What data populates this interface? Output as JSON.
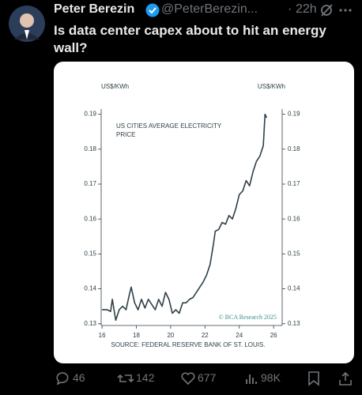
{
  "tweet": {
    "name": "Peter Berezin",
    "handle": "@PeterBerezin...",
    "time": "22h",
    "text": "Is data center capex about to hit an energy wall?",
    "replies": "46",
    "reposts": "142",
    "likes": "677",
    "views": "98K"
  },
  "chart_data": {
    "type": "line",
    "title": "US CITIES AVERAGE ELECTRICITY PRICE",
    "y_label": "US$/KWh",
    "source": "SOURCE: FEDERAL RESERVE BANK OF ST. LOUIS.",
    "watermark": "© BCA Research 2025",
    "color": "#2e3f47",
    "x": [
      16.0,
      16.3,
      16.5,
      16.6,
      16.8,
      17.0,
      17.2,
      17.4,
      17.6,
      17.7,
      17.9,
      18.1,
      18.3,
      18.5,
      18.7,
      18.9,
      19.1,
      19.3,
      19.5,
      19.7,
      19.9,
      20.1,
      20.3,
      20.5,
      20.7,
      20.9,
      21.1,
      21.3,
      21.5,
      21.7,
      21.9,
      22.1,
      22.3,
      22.5,
      22.6,
      22.8,
      23.0,
      23.2,
      23.4,
      23.6,
      23.8,
      24.0,
      24.2,
      24.4,
      24.6,
      24.8,
      25.0,
      25.2,
      25.4,
      25.5,
      25.6
    ],
    "values": [
      0.134,
      0.134,
      0.1335,
      0.137,
      0.131,
      0.134,
      0.135,
      0.134,
      0.1385,
      0.1405,
      0.136,
      0.134,
      0.137,
      0.1345,
      0.137,
      0.1355,
      0.134,
      0.137,
      0.135,
      0.139,
      0.137,
      0.133,
      0.134,
      0.133,
      0.136,
      0.136,
      0.137,
      0.1375,
      0.139,
      0.1405,
      0.142,
      0.144,
      0.147,
      0.153,
      0.1565,
      0.157,
      0.159,
      0.1585,
      0.161,
      0.16,
      0.163,
      0.167,
      0.168,
      0.171,
      0.1695,
      0.1735,
      0.1765,
      0.178,
      0.181,
      0.19,
      0.189
    ],
    "xlim": [
      15.95,
      26.5
    ],
    "xticks": [
      16,
      18,
      20,
      22,
      24,
      26
    ],
    "ylim": [
      0.1295,
      0.1915
    ],
    "yticks": [
      0.13,
      0.14,
      0.15,
      0.16,
      0.17,
      0.18,
      0.19
    ]
  }
}
